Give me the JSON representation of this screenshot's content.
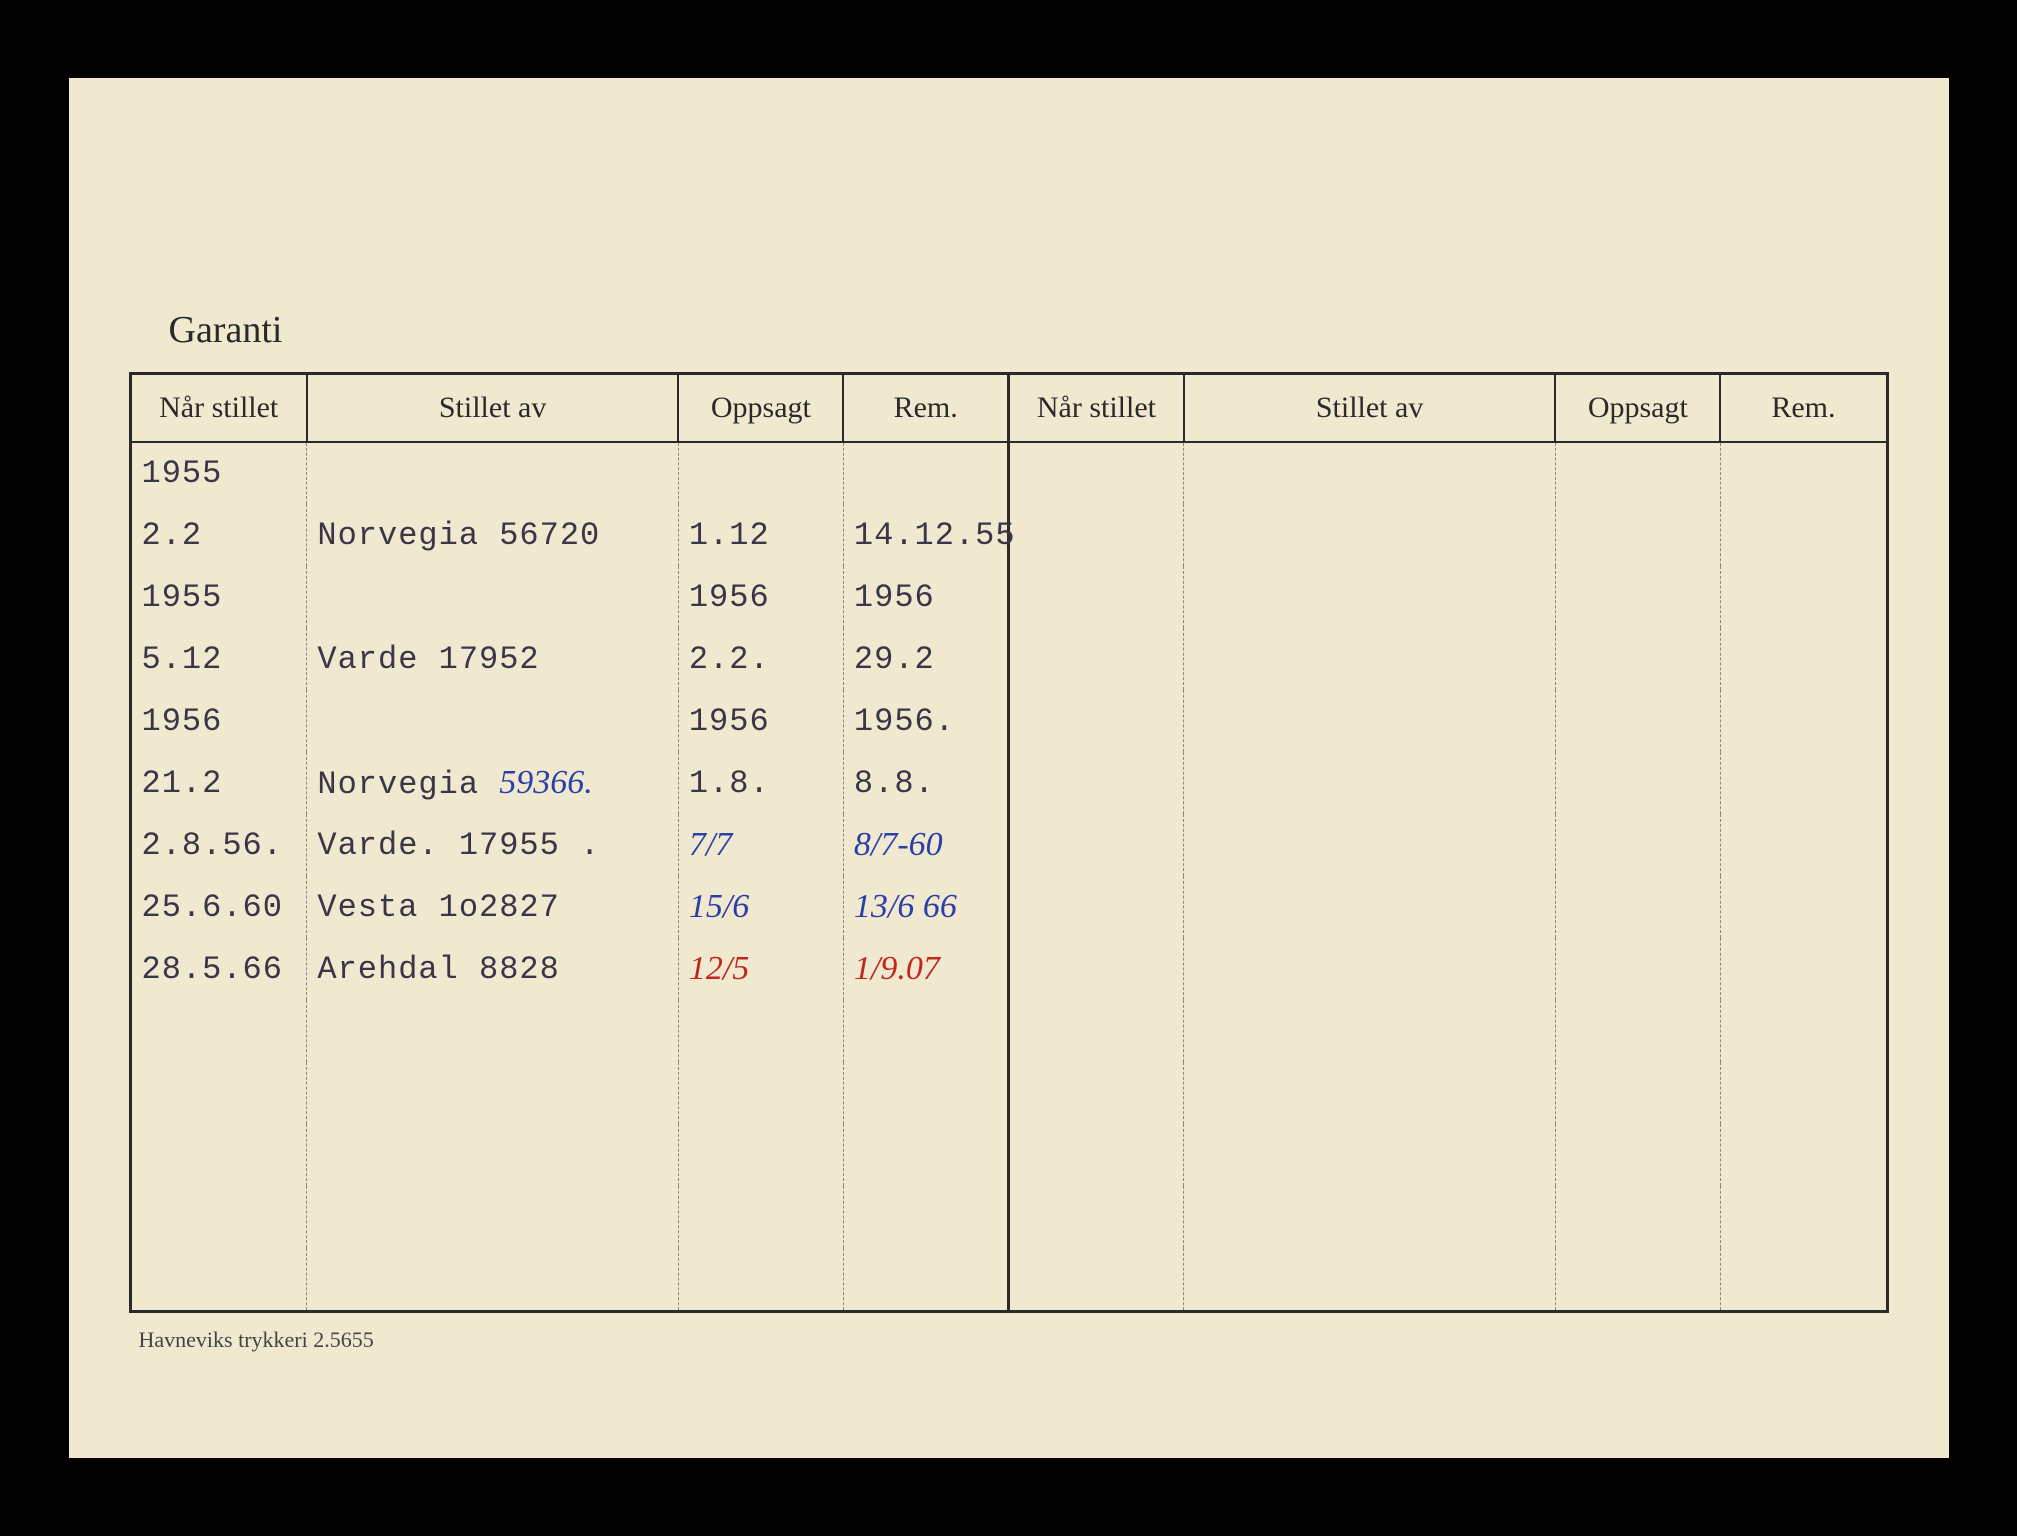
{
  "card": {
    "title": "Garanti",
    "footer": "Havneviks trykkeri 2.5655",
    "bg_color": "#f0e8cf",
    "border_color": "#2a2a2a",
    "dashed_color": "#888888"
  },
  "columns": [
    {
      "label": "Når stillet",
      "width_pct": 8.5
    },
    {
      "label": "Stillet av",
      "width_pct": 18
    },
    {
      "label": "Oppsagt",
      "width_pct": 8
    },
    {
      "label": "Rem.",
      "width_pct": 8
    },
    {
      "label": "Når stillet",
      "width_pct": 8.5
    },
    {
      "label": "Stillet av",
      "width_pct": 18
    },
    {
      "label": "Oppsagt",
      "width_pct": 8
    },
    {
      "label": "Rem.",
      "width_pct": 8
    }
  ],
  "text_colors": {
    "typed": "#3a3648",
    "hand_blue": "#2b3fa8",
    "hand_red": "#c0281f"
  },
  "font": {
    "typed_family": "Courier New",
    "hand_family": "Comic Sans MS",
    "header_family": "Times New Roman",
    "header_size_pt": 30,
    "cell_size_pt": 32
  },
  "rows": [
    {
      "nar": {
        "text": "1955",
        "style": "typed"
      },
      "stillet": {
        "text": "",
        "style": "typed"
      },
      "oppsagt": {
        "text": "",
        "style": "typed"
      },
      "rem": {
        "text": "",
        "style": "typed"
      }
    },
    {
      "nar": {
        "text": "2.2",
        "style": "typed"
      },
      "stillet": {
        "text": "Norvegia 56720",
        "style": "typed"
      },
      "oppsagt": {
        "text": "1.12",
        "style": "typed"
      },
      "rem": {
        "text": "14.12.55",
        "style": "typed"
      }
    },
    {
      "nar": {
        "text": "1955",
        "style": "typed"
      },
      "stillet": {
        "text": "",
        "style": "typed"
      },
      "oppsagt": {
        "text": "1956",
        "style": "typed"
      },
      "rem": {
        "text": "1956",
        "style": "typed"
      }
    },
    {
      "nar": {
        "text": "5.12",
        "style": "typed"
      },
      "stillet": {
        "text": "Varde 17952",
        "style": "typed"
      },
      "oppsagt": {
        "text": "2.2.",
        "style": "typed"
      },
      "rem": {
        "text": "29.2",
        "style": "typed"
      }
    },
    {
      "nar": {
        "text": "1956",
        "style": "typed"
      },
      "stillet": {
        "text": "",
        "style": "typed"
      },
      "oppsagt": {
        "text": "1956",
        "style": "typed"
      },
      "rem": {
        "text": "1956.",
        "style": "typed"
      }
    },
    {
      "nar": {
        "text": "21.2",
        "style": "typed"
      },
      "stillet": {
        "text": "Norvegia 59366.",
        "style": "hand-blue",
        "prefix_typed": "Norvegia "
      },
      "oppsagt": {
        "text": "1.8.",
        "style": "typed"
      },
      "rem": {
        "text": "8.8.",
        "style": "typed"
      }
    },
    {
      "nar": {
        "text": "2.8.56.",
        "style": "typed"
      },
      "stillet": {
        "text": "Varde. 17955 .",
        "style": "typed"
      },
      "oppsagt": {
        "text": "7/7",
        "style": "hand-blue"
      },
      "rem": {
        "text": "8/7-60",
        "style": "hand-blue"
      }
    },
    {
      "nar": {
        "text": "25.6.60",
        "style": "typed"
      },
      "stillet": {
        "text": "Vesta 1o2827",
        "style": "typed"
      },
      "oppsagt": {
        "text": "15/6",
        "style": "hand-blue"
      },
      "rem": {
        "text": "13/6 66",
        "style": "hand-blue"
      }
    },
    {
      "nar": {
        "text": "28.5.66",
        "style": "typed"
      },
      "stillet": {
        "text": "Arehdal  8828",
        "style": "typed"
      },
      "oppsagt": {
        "text": "12/5",
        "style": "hand-red"
      },
      "rem": {
        "text": "1/9.07",
        "style": "hand-red"
      }
    },
    {
      "nar": {
        "text": ""
      },
      "stillet": {
        "text": ""
      },
      "oppsagt": {
        "text": ""
      },
      "rem": {
        "text": ""
      }
    },
    {
      "nar": {
        "text": ""
      },
      "stillet": {
        "text": ""
      },
      "oppsagt": {
        "text": ""
      },
      "rem": {
        "text": ""
      }
    },
    {
      "nar": {
        "text": ""
      },
      "stillet": {
        "text": ""
      },
      "oppsagt": {
        "text": ""
      },
      "rem": {
        "text": ""
      }
    },
    {
      "nar": {
        "text": ""
      },
      "stillet": {
        "text": ""
      },
      "oppsagt": {
        "text": ""
      },
      "rem": {
        "text": ""
      }
    },
    {
      "nar": {
        "text": ""
      },
      "stillet": {
        "text": ""
      },
      "oppsagt": {
        "text": ""
      },
      "rem": {
        "text": ""
      }
    }
  ],
  "blank_rows_right": 14
}
